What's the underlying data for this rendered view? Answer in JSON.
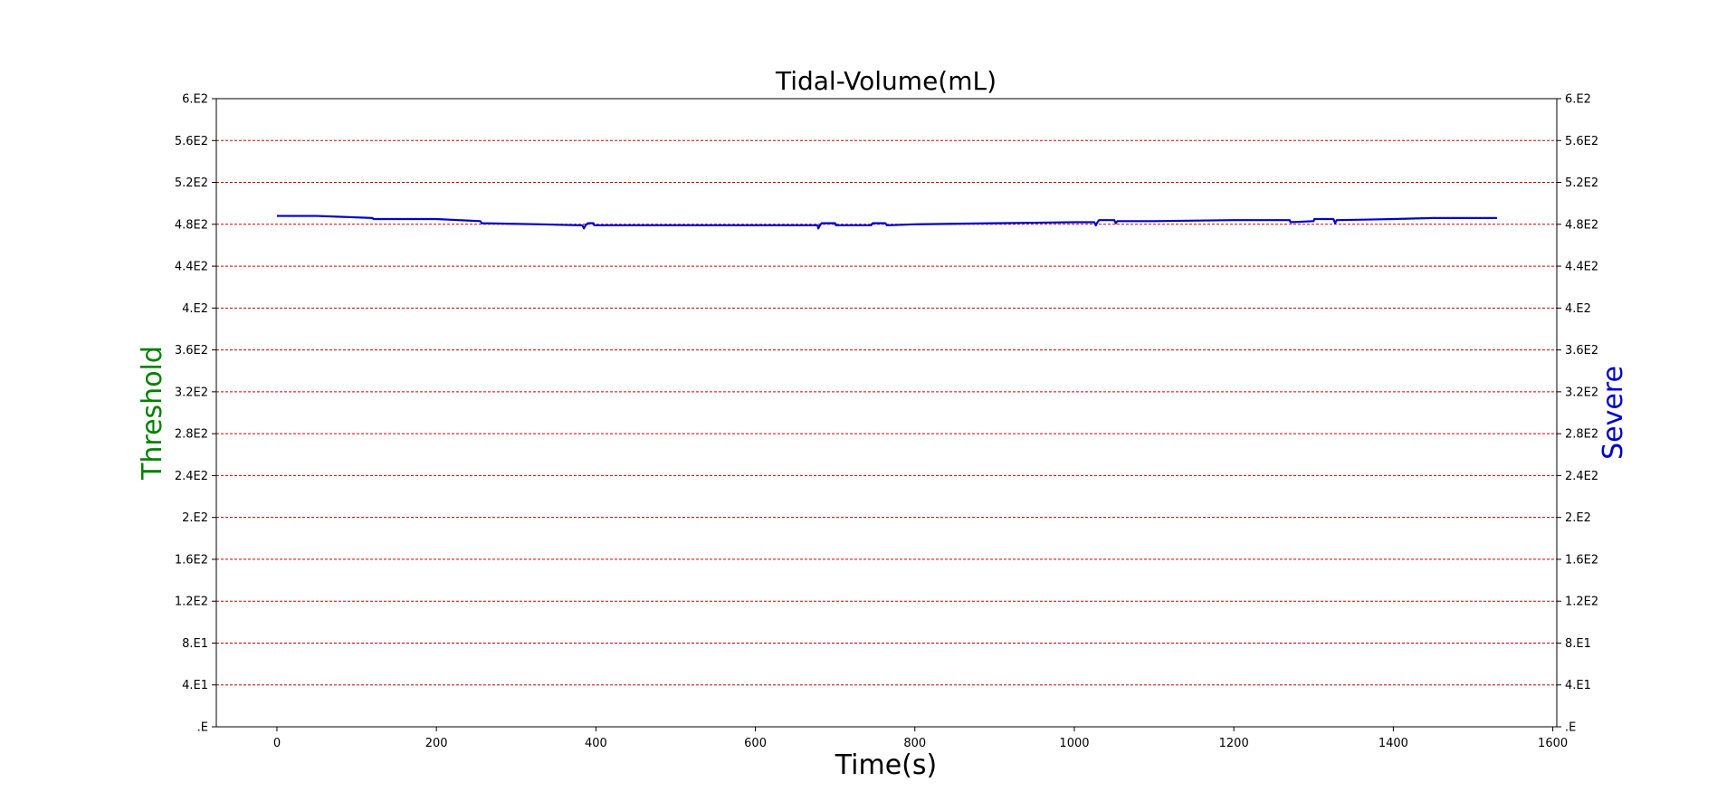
{
  "chart_data": {
    "type": "line",
    "title": "Tidal-Volume(mL)",
    "xlabel": "Time(s)",
    "ylabel_left": "Threshold",
    "ylabel_right": "Severe",
    "xlim": [
      -76,
      1605
    ],
    "ylim": [
      0,
      600
    ],
    "x_ticks": [
      0,
      200,
      400,
      600,
      800,
      1000,
      1200,
      1400,
      1600
    ],
    "x_tick_labels": [
      "0",
      "200",
      "400",
      "600",
      "800",
      "1000",
      "1200",
      "1400",
      "1600"
    ],
    "y_ticks": [
      0,
      40,
      80,
      120,
      160,
      200,
      240,
      280,
      320,
      360,
      400,
      440,
      480,
      520,
      560,
      600
    ],
    "y_tick_labels": [
      ".E",
      "4.E1",
      "8.E1",
      "1.2E2",
      "1.6E2",
      "2.E2",
      "2.4E2",
      "2.8E2",
      "3.2E2",
      "3.6E2",
      "4.E2",
      "4.4E2",
      "4.8E2",
      "5.2E2",
      "5.6E2",
      "6.E2"
    ],
    "grid": "horizontal dashed",
    "colors": {
      "series": "#0000cc",
      "grid": "#cc0000",
      "ylabel_left": "#008000",
      "ylabel_right": "#0000cc",
      "axis": "#000000"
    },
    "series": [
      {
        "x": [
          0,
          50,
          120,
          121,
          200,
          255,
          257,
          330,
          380,
          383,
          385,
          387,
          390,
          397,
          398,
          500,
          600,
          678,
          679,
          681,
          683,
          686,
          700,
          701,
          745,
          747,
          763,
          765,
          800,
          900,
          1000,
          1025,
          1027,
          1029,
          1031,
          1050,
          1052,
          1054,
          1100,
          1200,
          1270,
          1271,
          1300,
          1301,
          1325,
          1327,
          1329,
          1331,
          1400,
          1450,
          1530
        ],
        "y": [
          488,
          488,
          486,
          485,
          485,
          483,
          481,
          480,
          479,
          479,
          476,
          479,
          481,
          481,
          479,
          479,
          479,
          479,
          476,
          479,
          481,
          481,
          481,
          479,
          479,
          481,
          481,
          479,
          480,
          481,
          482,
          482,
          479,
          482,
          484,
          484,
          481,
          483,
          483,
          484,
          484,
          482,
          483,
          485,
          485,
          481,
          484,
          484,
          485,
          486,
          486
        ]
      }
    ]
  }
}
